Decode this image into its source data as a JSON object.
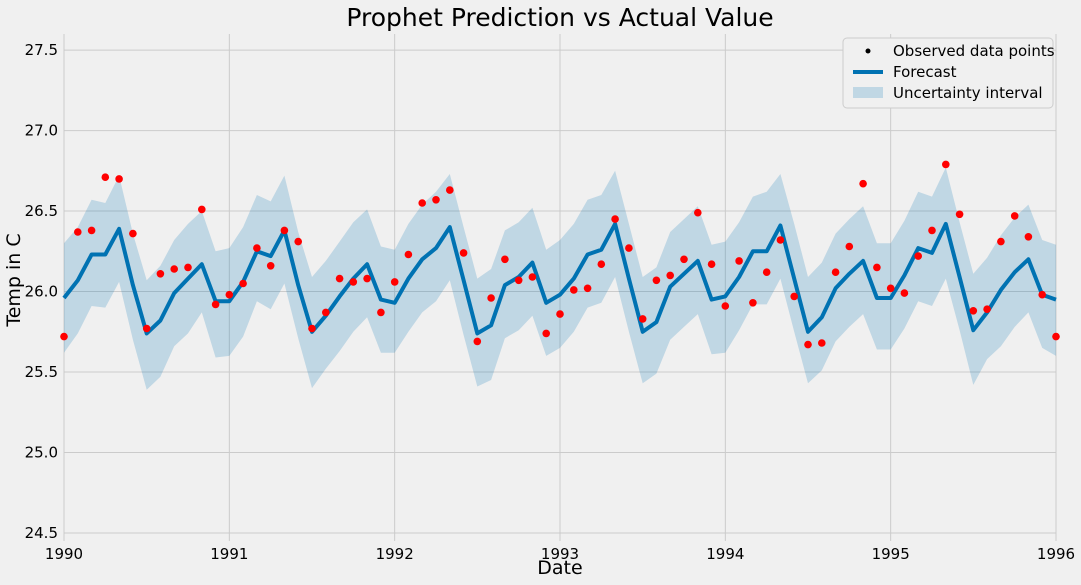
{
  "chart_data": {
    "type": "line",
    "title": "Prophet Prediction vs Actual Value",
    "xlabel": "Date",
    "ylabel": "Temp in C",
    "xlim": [
      "1990-01",
      "1996-01"
    ],
    "ylim": [
      24.45,
      27.6
    ],
    "x_ticks": [
      "1990",
      "1991",
      "1992",
      "1993",
      "1994",
      "1995",
      "1996"
    ],
    "y_ticks": [
      "24.5",
      "25.0",
      "25.5",
      "26.0",
      "26.5",
      "27.0",
      "27.5"
    ],
    "grid": true,
    "legend_position": "top-right",
    "colors": {
      "observed": "#ff0000",
      "forecast": "#0072b2",
      "interval": "#0072b2",
      "grid": "#cbcbcb",
      "background": "#f0f0f0"
    },
    "legend": [
      {
        "label": "Observed data points",
        "kind": "dot"
      },
      {
        "label": "Forecast",
        "kind": "line"
      },
      {
        "label": "Uncertainty interval",
        "kind": "band"
      }
    ],
    "dates": [
      "1990-01",
      "1990-02",
      "1990-03",
      "1990-04",
      "1990-05",
      "1990-06",
      "1990-07",
      "1990-08",
      "1990-09",
      "1990-10",
      "1990-11",
      "1990-12",
      "1991-01",
      "1991-02",
      "1991-03",
      "1991-04",
      "1991-05",
      "1991-06",
      "1991-07",
      "1991-08",
      "1991-09",
      "1991-10",
      "1991-11",
      "1991-12",
      "1992-01",
      "1992-02",
      "1992-03",
      "1992-04",
      "1992-05",
      "1992-06",
      "1992-07",
      "1992-08",
      "1992-09",
      "1992-10",
      "1992-11",
      "1992-12",
      "1993-01",
      "1993-02",
      "1993-03",
      "1993-04",
      "1993-05",
      "1993-06",
      "1993-07",
      "1993-08",
      "1993-09",
      "1993-10",
      "1993-11",
      "1993-12",
      "1994-01",
      "1994-02",
      "1994-03",
      "1994-04",
      "1994-05",
      "1994-06",
      "1994-07",
      "1994-08",
      "1994-09",
      "1994-10",
      "1994-11",
      "1994-12",
      "1995-01",
      "1995-02",
      "1995-03",
      "1995-04",
      "1995-05",
      "1995-06",
      "1995-07",
      "1995-08",
      "1995-09",
      "1995-10",
      "1995-11",
      "1995-12",
      "1996-01"
    ],
    "observed": [
      25.72,
      26.37,
      26.38,
      26.71,
      26.7,
      26.36,
      25.77,
      26.11,
      26.14,
      26.15,
      26.51,
      25.92,
      25.98,
      26.05,
      26.27,
      26.16,
      26.38,
      26.31,
      25.77,
      25.87,
      26.08,
      26.06,
      26.08,
      25.87,
      26.06,
      26.23,
      26.55,
      26.57,
      26.63,
      26.24,
      25.69,
      25.96,
      26.2,
      26.07,
      26.09,
      25.74,
      25.86,
      26.01,
      26.02,
      26.17,
      26.45,
      26.27,
      25.83,
      26.07,
      26.1,
      26.2,
      26.49,
      26.17,
      25.91,
      26.19,
      25.93,
      26.12,
      26.32,
      25.97,
      25.67,
      25.68,
      26.12,
      26.28,
      26.67,
      26.15,
      26.02,
      25.99,
      26.22,
      26.38,
      26.79,
      26.48,
      25.88,
      25.89,
      26.31,
      26.47,
      26.34,
      25.98,
      25.72
    ],
    "forecast": [
      25.96,
      26.07,
      26.23,
      26.23,
      26.39,
      26.04,
      25.74,
      25.82,
      25.99,
      26.08,
      26.17,
      25.94,
      25.94,
      26.06,
      26.25,
      26.22,
      26.38,
      26.04,
      25.75,
      25.85,
      25.97,
      26.08,
      26.17,
      25.95,
      25.93,
      26.08,
      26.2,
      26.27,
      26.4,
      26.07,
      25.74,
      25.79,
      26.04,
      26.09,
      26.18,
      25.93,
      25.98,
      26.08,
      26.23,
      26.26,
      26.42,
      26.08,
      25.75,
      25.81,
      26.03,
      26.11,
      26.19,
      25.95,
      25.97,
      26.09,
      26.25,
      26.25,
      26.41,
      26.08,
      25.75,
      25.84,
      26.02,
      26.11,
      26.19,
      25.96,
      25.96,
      26.1,
      26.27,
      26.24,
      26.42,
      26.09,
      25.76,
      25.87,
      26.01,
      26.12,
      26.2,
      25.98,
      25.95
    ],
    "upper": [
      26.3,
      26.4,
      26.57,
      26.55,
      26.72,
      26.36,
      26.07,
      26.16,
      26.32,
      26.42,
      26.5,
      26.25,
      26.27,
      26.4,
      26.6,
      26.56,
      26.72,
      26.37,
      26.09,
      26.19,
      26.31,
      26.43,
      26.51,
      26.28,
      26.26,
      26.42,
      26.54,
      26.62,
      26.73,
      26.4,
      26.08,
      26.14,
      26.38,
      26.43,
      26.52,
      26.26,
      26.32,
      26.42,
      26.57,
      26.6,
      26.75,
      26.42,
      26.09,
      26.15,
      26.37,
      26.45,
      26.53,
      26.29,
      26.31,
      26.43,
      26.59,
      26.62,
      26.73,
      26.42,
      26.09,
      26.18,
      26.36,
      26.45,
      26.53,
      26.3,
      26.3,
      26.44,
      26.62,
      26.59,
      26.77,
      26.43,
      26.11,
      26.21,
      26.35,
      26.46,
      26.54,
      26.32,
      26.29
    ],
    "lower": [
      25.62,
      25.74,
      25.91,
      25.9,
      26.06,
      25.7,
      25.39,
      25.47,
      25.66,
      25.74,
      25.87,
      25.59,
      25.6,
      25.72,
      25.94,
      25.89,
      26.05,
      25.71,
      25.4,
      25.52,
      25.63,
      25.75,
      25.84,
      25.62,
      25.62,
      25.75,
      25.87,
      25.94,
      26.07,
      25.73,
      25.41,
      25.45,
      25.71,
      25.76,
      25.85,
      25.6,
      25.65,
      25.75,
      25.9,
      25.93,
      26.09,
      25.75,
      25.43,
      25.49,
      25.7,
      25.78,
      25.86,
      25.61,
      25.62,
      25.76,
      25.92,
      25.92,
      26.08,
      25.75,
      25.43,
      25.51,
      25.69,
      25.78,
      25.86,
      25.64,
      25.64,
      25.77,
      25.94,
      25.91,
      26.08,
      25.76,
      25.42,
      25.58,
      25.66,
      25.78,
      25.87,
      25.65,
      25.6
    ]
  }
}
